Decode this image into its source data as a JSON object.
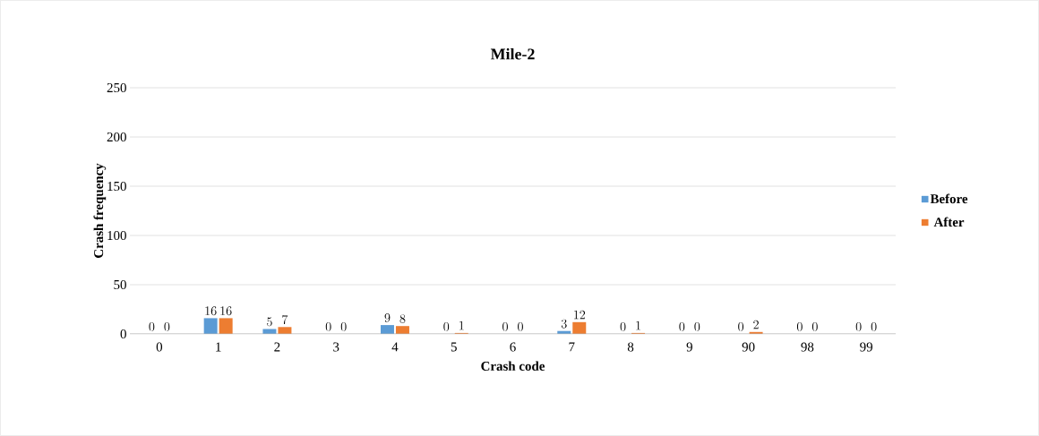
{
  "chart_data": {
    "type": "bar",
    "title": "Mile-2",
    "xlabel": "Crash code",
    "ylabel": "Crash frequency",
    "categories": [
      "0",
      "1",
      "2",
      "3",
      "4",
      "5",
      "6",
      "7",
      "8",
      "9",
      "90",
      "98",
      "99"
    ],
    "series": [
      {
        "name": "Before",
        "color": "#5b9bd5",
        "values": [
          0,
          16,
          5,
          0,
          9,
          0,
          0,
          3,
          0,
          0,
          0,
          0,
          0
        ]
      },
      {
        "name": "After",
        "color": "#ed7d31",
        "values": [
          0,
          16,
          7,
          0,
          8,
          1,
          0,
          12,
          1,
          0,
          2,
          0,
          0
        ]
      }
    ],
    "ylim": [
      0,
      250
    ],
    "yticks": [
      0,
      50,
      100,
      150,
      200,
      250
    ],
    "grid": "y",
    "legend": "right",
    "data_labels": true
  }
}
